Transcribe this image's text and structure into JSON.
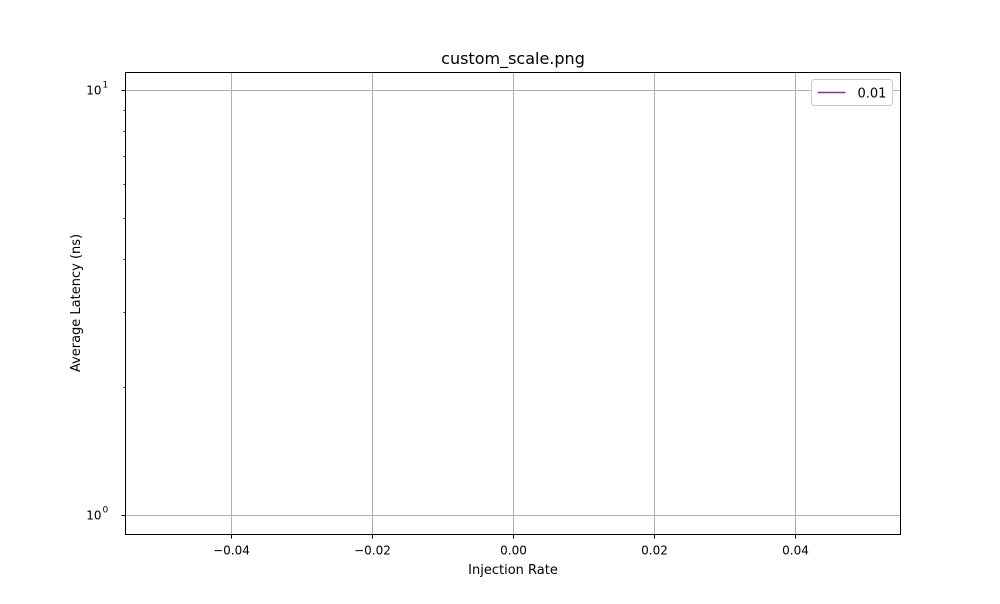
{
  "chart_data": {
    "type": "line",
    "title": "custom_scale.png",
    "xlabel": "Injection Rate",
    "ylabel": "Average Latency (ns)",
    "xlim": [
      -0.055,
      0.055
    ],
    "ylim": [
      0.9,
      11.0
    ],
    "yscale": "log",
    "grid": true,
    "legend_placement": "top-right",
    "x_ticks": [
      -0.04,
      -0.02,
      0.0,
      0.02,
      0.04
    ],
    "x_tick_labels": [
      "−0.04",
      "−0.02",
      "0.00",
      "0.02",
      "0.04"
    ],
    "y_ticks": [
      {
        "value": 1,
        "base": "10",
        "exp": "0"
      },
      {
        "value": 10,
        "base": "10",
        "exp": "1"
      }
    ],
    "series": [
      {
        "name": "0.01",
        "color": "#7d3c98",
        "x": [],
        "y": []
      }
    ]
  }
}
